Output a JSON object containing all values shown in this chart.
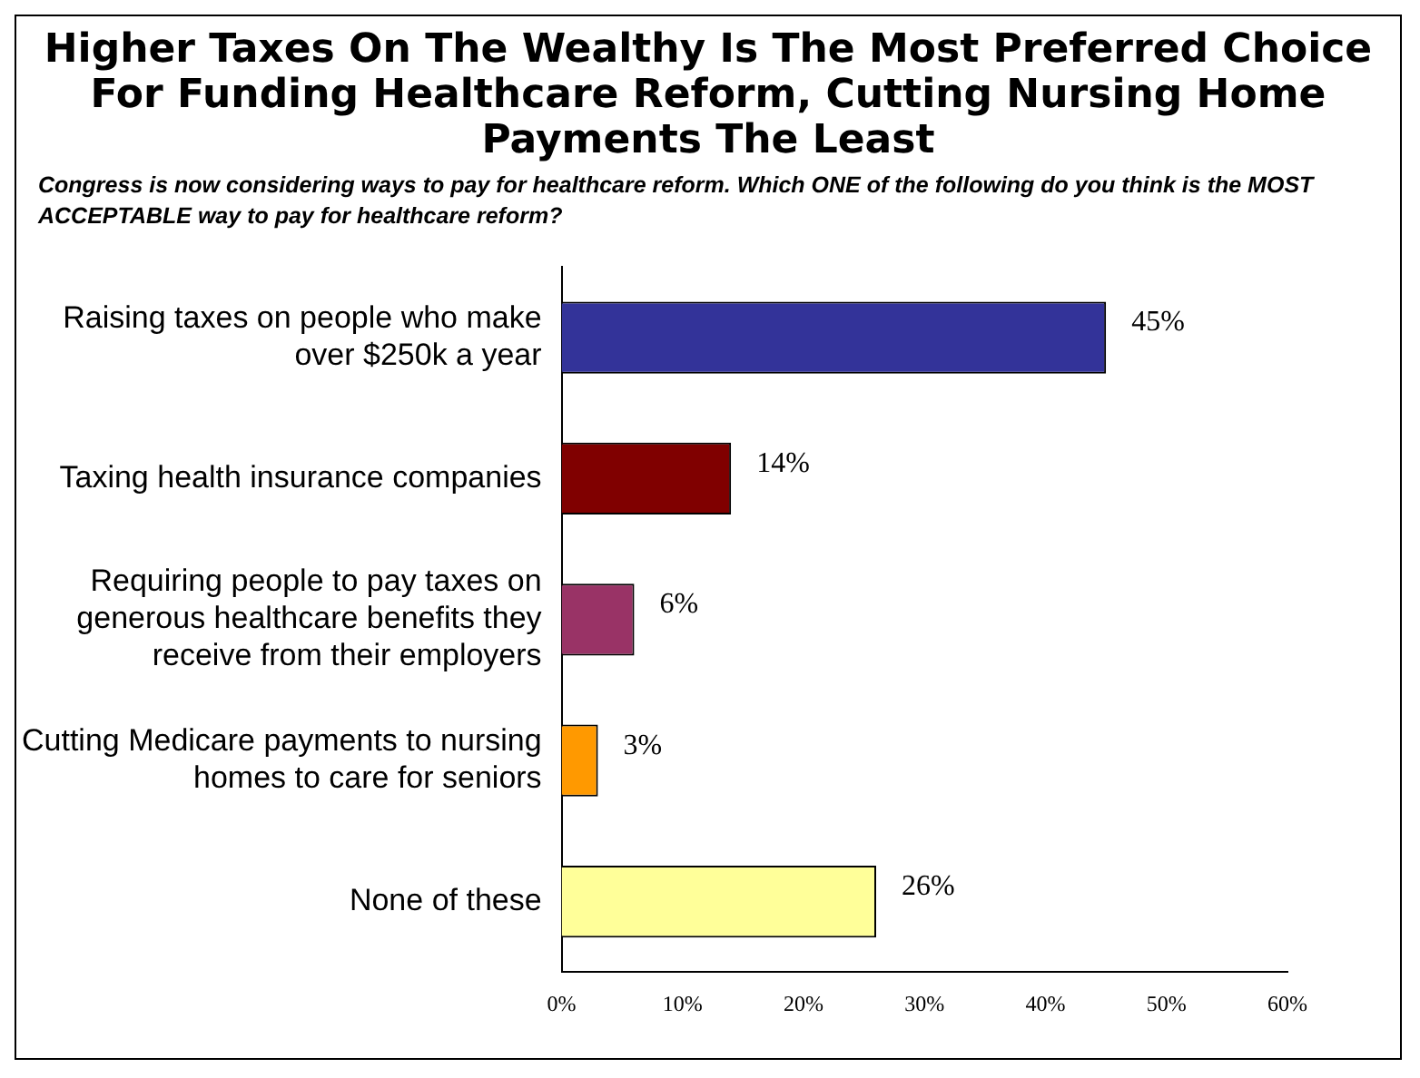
{
  "chart_data": {
    "type": "bar",
    "orientation": "horizontal",
    "title": "Higher Taxes On The Wealthy Is The Most Preferred Choice For Funding Healthcare Reform, Cutting Nursing Home Payments The Least",
    "subtitle": "Congress is now considering ways to pay for healthcare reform. Which ONE of the following do you think is the MOST ACCEPTABLE way to pay for healthcare reform?",
    "categories": [
      "Raising taxes on people who make over $250k a year",
      "Taxing health insurance companies",
      "Requiring people to pay taxes on generous healthcare benefits they receive from their employers",
      "Cutting Medicare payments to nursing homes to care for seniors",
      "None of these"
    ],
    "values": [
      45,
      14,
      6,
      3,
      26
    ],
    "colors": [
      "#333399",
      "#800000",
      "#993366",
      "#ff9900",
      "#ffff99"
    ],
    "value_labels": [
      "45%",
      "14%",
      "6%",
      "3%",
      "26%"
    ],
    "xlim": [
      0,
      60
    ],
    "xticks": [
      {
        "value": 0,
        "label": "0%"
      },
      {
        "value": 10,
        "label": "10%"
      },
      {
        "value": 20,
        "label": "20%"
      },
      {
        "value": 30,
        "label": "30%"
      },
      {
        "value": 40,
        "label": "40%"
      },
      {
        "value": 50,
        "label": "50%"
      },
      {
        "value": 60,
        "label": "60%"
      }
    ],
    "grid": false,
    "legend": false
  }
}
